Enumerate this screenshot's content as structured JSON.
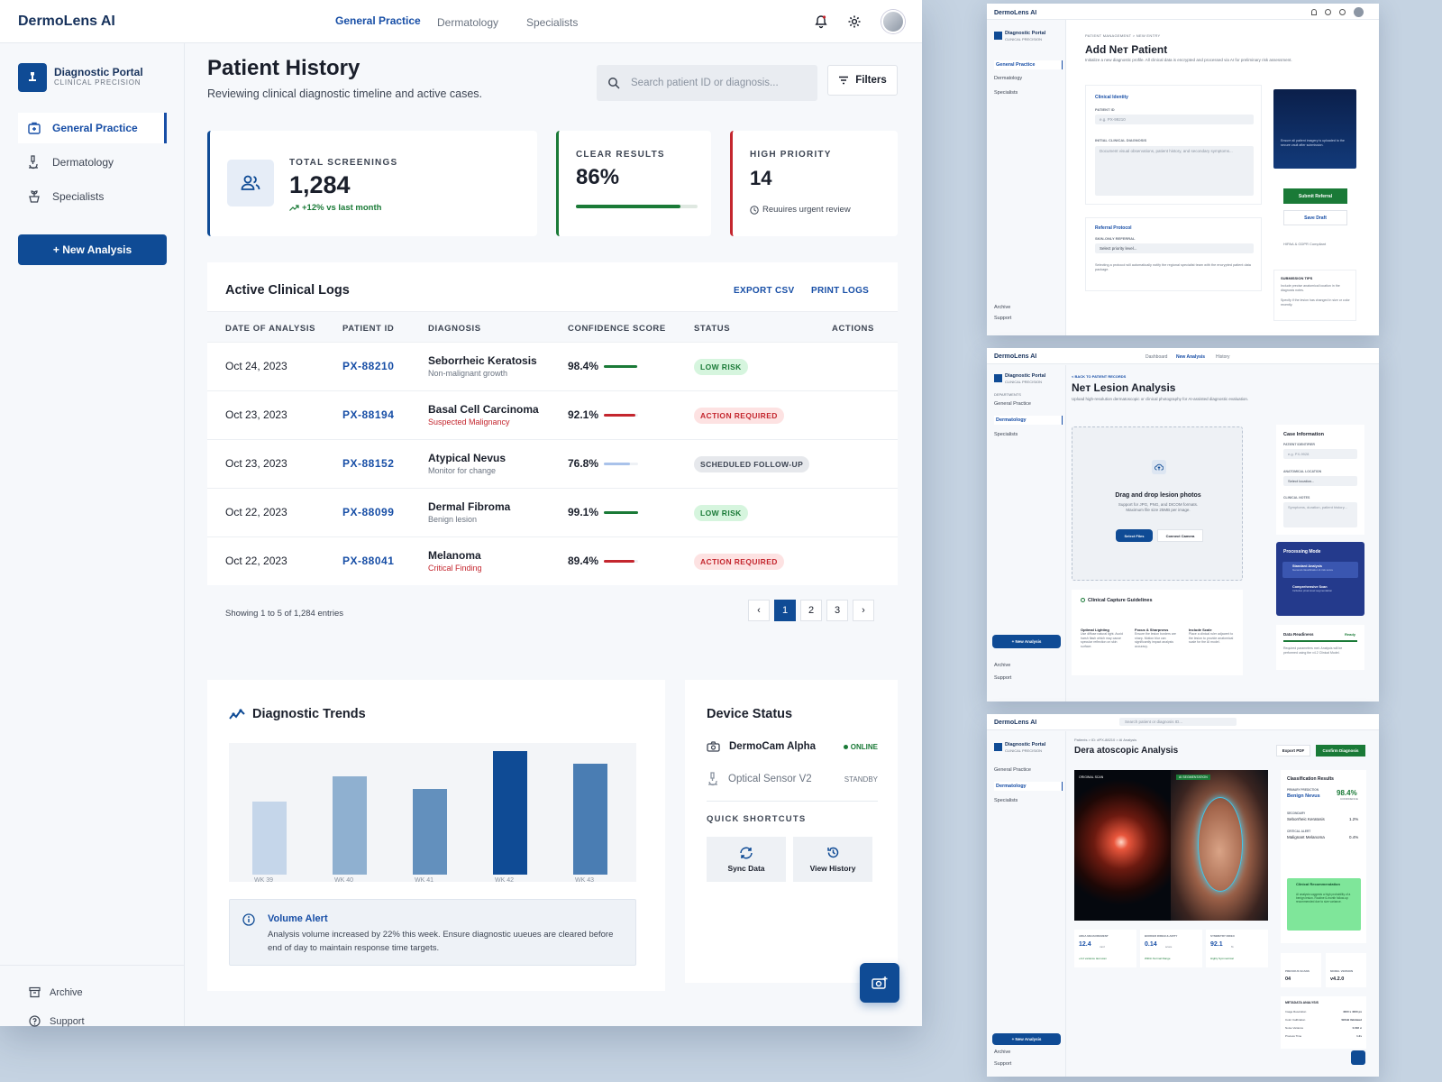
{
  "colors": {
    "primary": "#0f4b95",
    "accent": "#174ea6",
    "success": "#1a7a37",
    "danger": "#c4262e",
    "neutral": "#6a7380"
  },
  "main": {
    "logo": "DermoLens AI",
    "nav": [
      "General Practice",
      "Dermatology",
      "Specialists"
    ],
    "portal": {
      "title": "Diagnostic Portal",
      "subtitle": "CLINICAL PRECISION"
    },
    "sidebar": {
      "items": [
        {
          "label": "General Practice",
          "icon": "medical-kit-icon"
        },
        {
          "label": "Dermatology",
          "icon": "microscope-icon"
        },
        {
          "label": "Specialists",
          "icon": "plant-icon"
        }
      ],
      "new_analysis": "+ New Analysis",
      "archive": "Archive",
      "support": "Support"
    },
    "page_title": "Patient History",
    "page_subtitle": "Reviewing clinical diagnostic timeline and active cases.",
    "search_placeholder": "Search patient ID or diagnosis...",
    "filters": "Filters",
    "stats": {
      "total": {
        "label": "TOTAL SCREENINGS",
        "value": "1,284",
        "delta": "+12% vs last month"
      },
      "clear": {
        "label": "CLEAR RESULTS",
        "value": "86%",
        "progress": 0.86
      },
      "priority": {
        "label": "HIGH PRIORITY",
        "value": "14",
        "note": "Reuuires urgent review"
      }
    },
    "logs": {
      "title": "Active Clinical Logs",
      "export": "EXPORT CSV",
      "print": "PRINT LOGS",
      "columns": [
        "DATE OF ANALYSIS",
        "PATIENT ID",
        "DIAGNOSIS",
        "CONFIDENCE SCORE",
        "STATUS",
        "ACTIONS"
      ],
      "rows": [
        {
          "date": "Oct 24, 2023",
          "id": "PX-88210",
          "diagnosis": "Seborrheic Keratosis",
          "note": "Non-malignant growth",
          "score": "98.4%",
          "confidence": 0.984,
          "status": "LOW RISK",
          "kind": "low"
        },
        {
          "date": "Oct 23, 2023",
          "id": "PX-88194",
          "diagnosis": "Basal Cell Carcinoma",
          "note": "Suspected Malignancy",
          "score": "92.1%",
          "confidence": 0.921,
          "status": "ACTION REQUIRED",
          "kind": "action"
        },
        {
          "date": "Oct 23, 2023",
          "id": "PX-88152",
          "diagnosis": "Atypical Nevus",
          "note": "Monitor for change",
          "score": "76.8%",
          "confidence": 0.768,
          "status": "SCHEDULED FOLLOW-UP",
          "kind": "follow"
        },
        {
          "date": "Oct 22, 2023",
          "id": "PX-88099",
          "diagnosis": "Dermal Fibroma",
          "note": "Benign lesion",
          "score": "99.1%",
          "confidence": 0.991,
          "status": "LOW RISK",
          "kind": "low"
        },
        {
          "date": "Oct 22, 2023",
          "id": "PX-88041",
          "diagnosis": "Melanoma",
          "note": "Critical Finding",
          "score": "89.4%",
          "confidence": 0.894,
          "status": "ACTION REQUIRED",
          "kind": "action"
        }
      ],
      "showing": "Showing 1 to 5 of 1,284 entries",
      "pages": [
        "1",
        "2",
        "3"
      ]
    },
    "trends": {
      "title": "Diagnostic Trends",
      "alert_title": "Volume Alert",
      "alert_text": "Analysis volume increased by 22% this week. Ensure diagnostic uueues are cleared before end of day to maintain response time targets."
    },
    "device": {
      "title": "Device Status",
      "devices": [
        {
          "name": "DermoCam Alpha",
          "state": "ONLINE"
        },
        {
          "name": "Optical Sensor V2",
          "state": "STANDBY"
        }
      ],
      "shortcuts_title": "QUICK SHORTCUTS",
      "shortcuts": [
        "Sync Data",
        "View History"
      ]
    }
  },
  "chart_data": {
    "type": "bar",
    "categories": [
      "WK 39",
      "WK 40",
      "WK 41",
      "WK 42",
      "WK 43"
    ],
    "values": [
      58,
      78,
      68,
      98,
      88
    ],
    "ylim": [
      0,
      100
    ],
    "colors": [
      "#c5d6ea",
      "#8fb0d0",
      "#6390bd",
      "#0f4b95",
      "#4a7db3"
    ]
  },
  "panel1": {
    "logo": "DermoLens AI",
    "breadcrumb": "PATIENT MANAGEMENT  >  NEW ENTRY",
    "title": "Add Neт Patient",
    "subtitle": "Initialize a new diagnostic profile. All clinical data is encrypted and processed via AI for preliminary risk assessment.",
    "portal": "Diagnostic Portal",
    "portal_sub": "CLINICAL PRECISION",
    "nav": [
      "General Practice",
      "Dermatology",
      "Specialists"
    ],
    "clinical_identity": "Clinical Identity",
    "patient_id_label": "PATIENT ID",
    "patient_id_ph": "e.g. PX-99210",
    "diagnosis_label": "INITIAL CLINICAL DIAGNOSIS",
    "diagnosis_ph": "Document visual observations, patient history, and secondary symptoms...",
    "referral": "Referral Protocol",
    "referral_label": "SKIN-ONLY REFERRAL",
    "referral_select": "Select priority level...",
    "referral_note": "Selecting a protocol will automatically notify the regional specialist team with the encrypted patient data package.",
    "upload_note": "Ensure all patient imagery is uploaded to the secure vault after submission.",
    "submit": "Submit Referral",
    "draft": "Save Draft",
    "compliance": "HIPAA & GDPR Compliant",
    "tips_title": "SUBMISSION TIPS",
    "tips": [
      "Include precise anatomical location in the diagnosis notes.",
      "Specify if the lesion has changed in size or color recently."
    ],
    "archive": "Archive",
    "support": "Support"
  },
  "panel2": {
    "logo": "DermoLens AI",
    "nav": [
      "Dashboard",
      "New Analysis",
      "History"
    ],
    "back": "< BACK TO PATIENT RECORDS",
    "title": "Neт Lesion Analysis",
    "subtitle": "Upload high-resolution dermatoscopic or clinical photography for AI-assisted diagnostic evaluation.",
    "portal": "Diagnostic Portal",
    "portal_sub": "CLINICAL PRECISION",
    "departments": "DEPARTMENTS",
    "side": [
      "General Practice",
      "Dermatology",
      "Specialists"
    ],
    "drop_title": "Drag and drop lesion photos",
    "drop_text": "Support for JPG, PNG, and DICOM formats. Maximum file size 25MB per image.",
    "select": "Select Files",
    "camera": "Connect Camera",
    "case_title": "Case Information",
    "case_id_label": "PATIENT IDENTIFIER",
    "case_id_ph": "e.g. PX-9928",
    "loc_label": "ANATOMICAL LOCATION",
    "loc_ph": "Select location...",
    "notes_label": "CLINICAL NOTES",
    "notes_ph": "Symptoms, duration, patient history...",
    "guide_title": "Clinical Capture Guidelines",
    "guides": [
      {
        "t": "Optimal Lighting",
        "d": "Use diffuse natural light. Avoid harsh flash which may cause specular reflection on skin surface."
      },
      {
        "t": "Focus & Sharpness",
        "d": "Ensure the lesion borders are sharp. Motion blur can significantly impact analysis accuracy."
      },
      {
        "t": "Include Scale",
        "d": "Place a clinical ruler adjacent to the lesion to provide anatomical scale for the AI model."
      }
    ],
    "mode_title": "Processing Mode",
    "modes": [
      {
        "t": "Standard Analysis",
        "d": "General classification & risk score"
      },
      {
        "t": "Comprehensive Scan",
        "d": "Includes pixel-level segmentation"
      }
    ],
    "ready_title": "Data Readiness",
    "ready_state": "Ready",
    "ready_text": "Required parameters met. Analysis will be performed using the v4.2 Clinical Model.",
    "new_analysis": "+ New Analysis",
    "archive": "Archive",
    "support": "Support"
  },
  "panel3": {
    "logo": "DermoLens AI",
    "search": "Search patient or diagnosis ID...",
    "portal": "Diagnostic Portal",
    "portal_sub": "CLINICAL PRECISION",
    "side": [
      "General Practice",
      "Dermatology",
      "Specialists"
    ],
    "breadcrumb": "Patients  >  ID: #PX-88210  >  AI Analysis",
    "title": "Dera atoscopic Analysis",
    "export": "Export PDF",
    "confirm": "Confirm Diagnosis",
    "img_left": "ORIGINAL SCAN",
    "img_right": "AI SEGMENTATION",
    "results_title": "Classification Results",
    "primary_label": "PRIMARY PREDICTION",
    "primary": "Benign Nevus",
    "primary_score": "98.4%",
    "primary_conf": "CONFIDENCE",
    "secondary_label": "SECONDARY",
    "secondary": "Seborrheic Keratosis",
    "secondary_score": "1.2%",
    "critical_label": "CRITICAL ALERT",
    "critical": "Malignant Melanoma",
    "critical_score": "0.4%",
    "rec_title": "Clinical Recommendation",
    "rec_text": "AI analysis suggests a high probability of a benign lesion. Routine 6-month follow-up recommended due to size variance.",
    "metrics": [
      {
        "l": "AREA MEASUREMENT",
        "v": "12.4",
        "u": "mm²",
        "n": "+0.2 variance last scan"
      },
      {
        "l": "BORDER IRREGULARITY",
        "v": "0.14",
        "u": "score",
        "n": "Within Normal Range"
      },
      {
        "l": "SYMMETRY INDEX",
        "v": "92.1",
        "u": "%",
        "n": "Highly Symmetrical"
      }
    ],
    "prev_label": "PREVIOUS SCANS",
    "prev": "04",
    "model_label": "MODEL VERSION",
    "model": "v4.2.0",
    "meta_title": "METADATA ANALYSIS",
    "meta": [
      {
        "k": "Image Resolution",
        "v": "4000 x 4000 px"
      },
      {
        "k": "Color Calibration",
        "v": "SRGB Validated"
      },
      {
        "k": "Noise Variance",
        "v": "0.002 σ"
      },
      {
        "k": "Process Time",
        "v": "1.2s"
      }
    ],
    "new_analysis": "+ New Analysis",
    "archive": "Archive",
    "support": "Support"
  }
}
